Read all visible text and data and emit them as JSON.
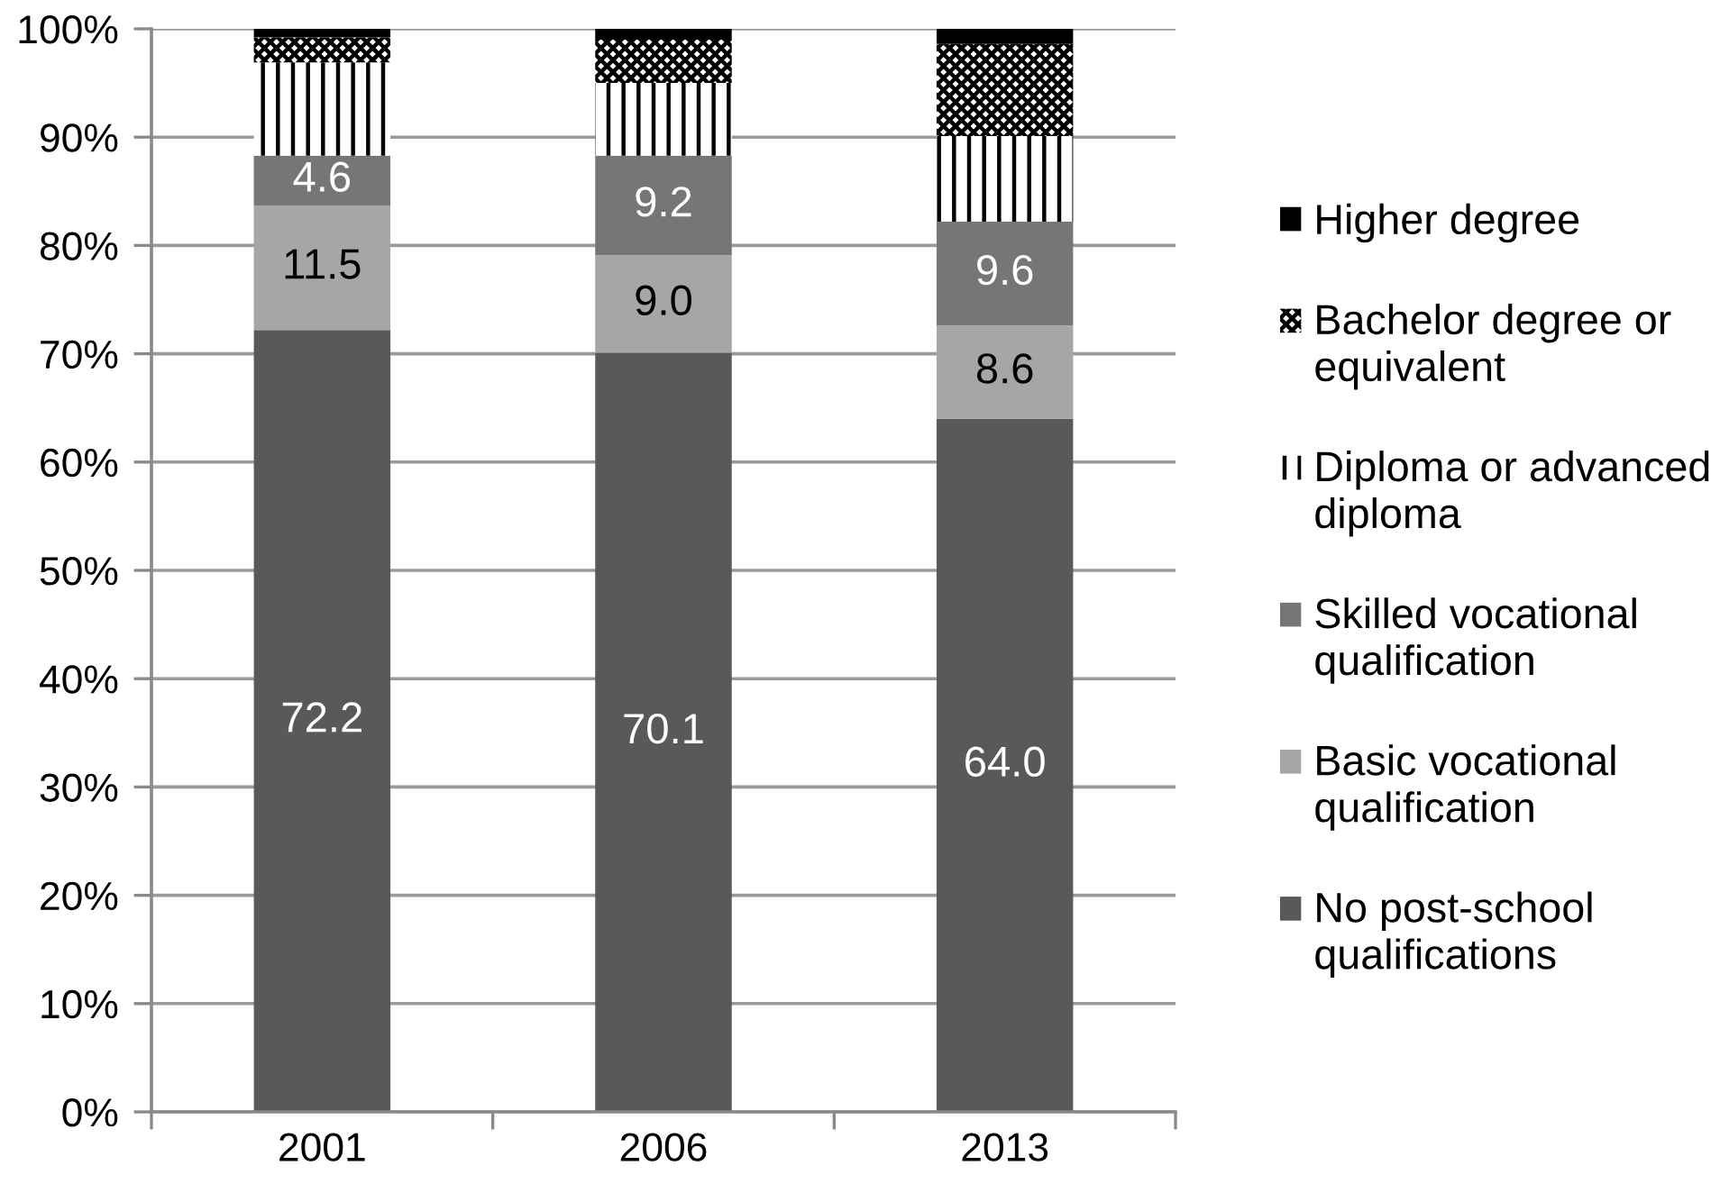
{
  "chart_data": {
    "type": "bar",
    "stacked": true,
    "categories": [
      "2001",
      "2006",
      "2013"
    ],
    "series": [
      {
        "name": "No post-school qualifications",
        "color": "#595959",
        "values": [
          72.2,
          70.1,
          64.0
        ],
        "value_labels": [
          "72.2",
          "70.1",
          "64.0"
        ]
      },
      {
        "name": "Basic vocational qualification",
        "color": "#a6a6a6",
        "values": [
          11.5,
          9.0,
          8.6
        ],
        "value_labels": [
          "11.5",
          "9.0",
          "8.6"
        ]
      },
      {
        "name": "Skilled vocational qualification",
        "color": "#767676",
        "values": [
          4.6,
          9.2,
          9.6
        ],
        "value_labels": [
          "4.6",
          "9.2",
          "9.6"
        ]
      },
      {
        "name": "Diploma or advanced diploma",
        "color": "#000000",
        "values": [
          8.6,
          6.7,
          7.9
        ]
      },
      {
        "name": "Bachelor degree or equivalent",
        "color": "#000000",
        "values": [
          2.3,
          4.0,
          8.5
        ]
      },
      {
        "name": "Higher degree",
        "color": "#000000",
        "values": [
          0.8,
          1.0,
          1.4
        ]
      }
    ],
    "ylim": [
      0,
      100
    ],
    "yticks": [
      {
        "value": 0,
        "label": "0%"
      },
      {
        "value": 10,
        "label": "10%"
      },
      {
        "value": 20,
        "label": "20%"
      },
      {
        "value": 30,
        "label": "30%"
      },
      {
        "value": 40,
        "label": "40%"
      },
      {
        "value": 50,
        "label": "50%"
      },
      {
        "value": 60,
        "label": "60%"
      },
      {
        "value": 70,
        "label": "70%"
      },
      {
        "value": 80,
        "label": "80%"
      },
      {
        "value": 90,
        "label": "90%"
      },
      {
        "value": 100,
        "label": "100%"
      }
    ],
    "grid": "y",
    "legend": "right"
  }
}
